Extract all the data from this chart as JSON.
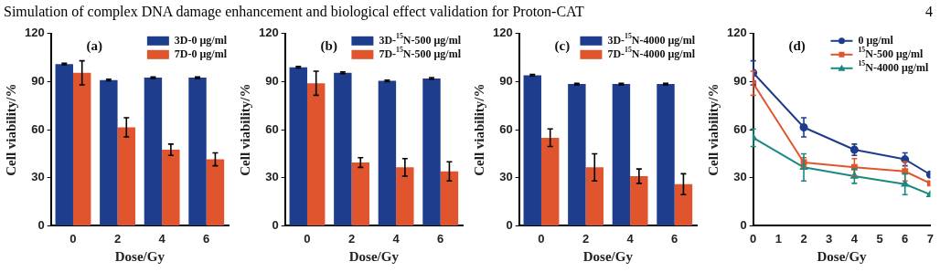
{
  "chart_data": [
    {
      "type": "bar",
      "title": "Simulation of complex DNA damage enhancement and biological effect validation for Proton-CAT",
      "annotations": [
        "(a)",
        "4"
      ],
      "xlabel": "Dose/Gy",
      "ylabel": "Cell viability/%",
      "categories": [
        "0",
        "2",
        "4",
        "6"
      ],
      "ylim": [
        0,
        120
      ],
      "yticks": [
        0,
        30,
        60,
        90,
        120
      ],
      "grid": false,
      "legend": "top right",
      "series": [
        {
          "name": "3D-0 μg/ml",
          "color": "#1e3d8c",
          "values": [
            101,
            91,
            92.5,
            92.5
          ],
          "errors": [
            0.5,
            0.5,
            0.5,
            0.5
          ]
        },
        {
          "name": "7D-0 μg/ml",
          "color": "#e0552e",
          "values": [
            95.5,
            61.5,
            47.5,
            41.5
          ],
          "errors": [
            7.5,
            6,
            3.5,
            4
          ]
        }
      ]
    },
    {
      "type": "bar",
      "annotations": [
        "(b)"
      ],
      "xlabel": "Dose/Gy",
      "ylabel": "Cell viability/%",
      "categories": [
        "0",
        "2",
        "4",
        "6"
      ],
      "ylim": [
        0,
        120
      ],
      "yticks": [
        0,
        30,
        60,
        90,
        120
      ],
      "grid": false,
      "legend": "top right",
      "series": [
        {
          "name": "3D-$^{15}$N-500 μg/ml",
          "color": "#1e3d8c",
          "values": [
            99,
            95.5,
            90.5,
            92
          ],
          "errors": [
            0.5,
            0.5,
            0.5,
            0.5
          ]
        },
        {
          "name": "7D-$^{15}$N-500 μg/ml",
          "color": "#e0552e",
          "values": [
            89,
            39.5,
            36.5,
            34
          ],
          "errors": [
            7.5,
            3,
            5.5,
            6
          ]
        }
      ]
    },
    {
      "type": "bar",
      "annotations": [
        "(c)"
      ],
      "xlabel": "Dose/Gy",
      "ylabel": "Cell viability/%",
      "categories": [
        "0",
        "2",
        "4",
        "6"
      ],
      "ylim": [
        0,
        120
      ],
      "yticks": [
        0,
        30,
        60,
        90,
        120
      ],
      "grid": false,
      "legend": "top right",
      "series": [
        {
          "name": "3D-$^{15}$N-4000 μg/ml",
          "color": "#1e3d8c",
          "values": [
            94,
            88.5,
            88.5,
            88.5
          ],
          "errors": [
            0.5,
            0.5,
            0.5,
            0.5
          ]
        },
        {
          "name": "7D-$^{15}$N-4000 μg/ml",
          "color": "#e0552e",
          "values": [
            55,
            36.5,
            31,
            26
          ],
          "errors": [
            5.5,
            8.5,
            4.5,
            6.5
          ]
        }
      ]
    },
    {
      "type": "line",
      "annotations": [
        "(d)"
      ],
      "xlabel": "Dose/Gy",
      "ylabel": "Cell viability/%",
      "x": [
        0,
        2,
        4,
        6,
        7
      ],
      "xlim": [
        0,
        7
      ],
      "xticks": [
        0,
        1,
        2,
        3,
        4,
        5,
        6,
        7
      ],
      "ylim": [
        0,
        120
      ],
      "yticks": [
        0,
        30,
        60,
        90,
        120
      ],
      "grid": false,
      "legend": "top right",
      "line_style": "solid",
      "series": [
        {
          "name": "0 μg/ml",
          "color": "#1e3d8c",
          "marker": "circle",
          "values": [
            95.5,
            61.5,
            47.5,
            41.5,
            32
          ],
          "errors": [
            7.5,
            6,
            3.5,
            4,
            null
          ]
        },
        {
          "name": "$^{15}$N-500 μg/ml",
          "color": "#e0552e",
          "marker": "square",
          "values": [
            89,
            39.5,
            36.5,
            34,
            26.5
          ],
          "errors": [
            7.5,
            3,
            5.5,
            6,
            null
          ]
        },
        {
          "name": "$^{15}$N-4000 μg/ml",
          "color": "#1a8a80",
          "marker": "triangle",
          "values": [
            55,
            36.5,
            31,
            26,
            19.5
          ],
          "errors": [
            5.5,
            8.5,
            4.5,
            6.5,
            null
          ]
        }
      ]
    }
  ]
}
